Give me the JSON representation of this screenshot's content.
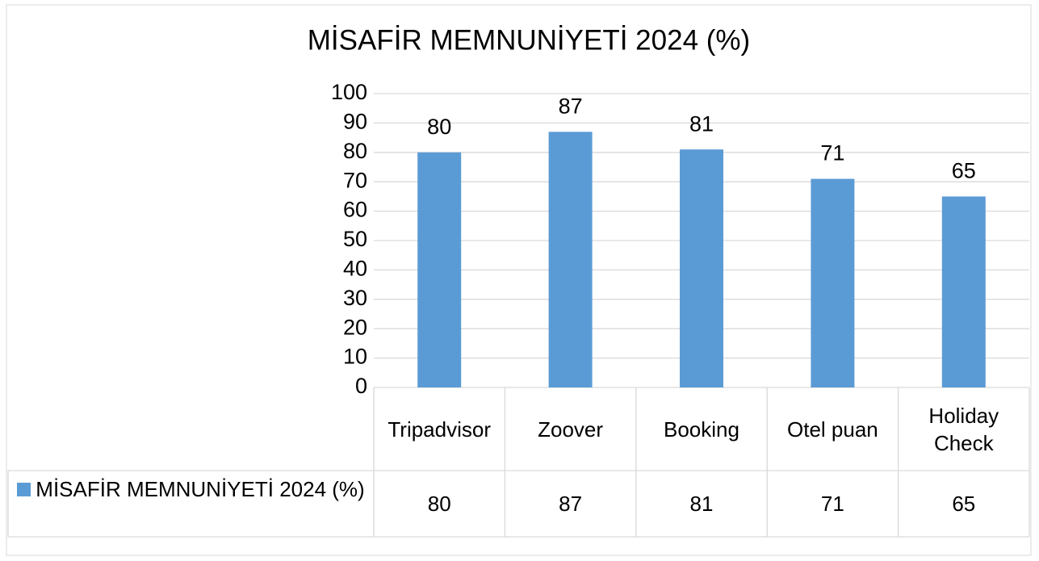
{
  "chart_data": {
    "type": "bar",
    "title": "MİSAFİR MEMNUNİYETİ  2024 (%)",
    "categories": [
      "Tripadvisor",
      "Zoover",
      "Booking",
      "Otel puan",
      "Holiday Check"
    ],
    "series": [
      {
        "name": "MİSAFİR MEMNUNİYETİ 2024 (%)",
        "color": "#5b9bd5",
        "values": [
          80,
          87,
          81,
          71,
          65
        ]
      }
    ],
    "ylim": [
      0,
      100
    ],
    "yticks": [
      0,
      10,
      20,
      30,
      40,
      50,
      60,
      70,
      80,
      90,
      100
    ],
    "grid": true,
    "data_table": true
  }
}
